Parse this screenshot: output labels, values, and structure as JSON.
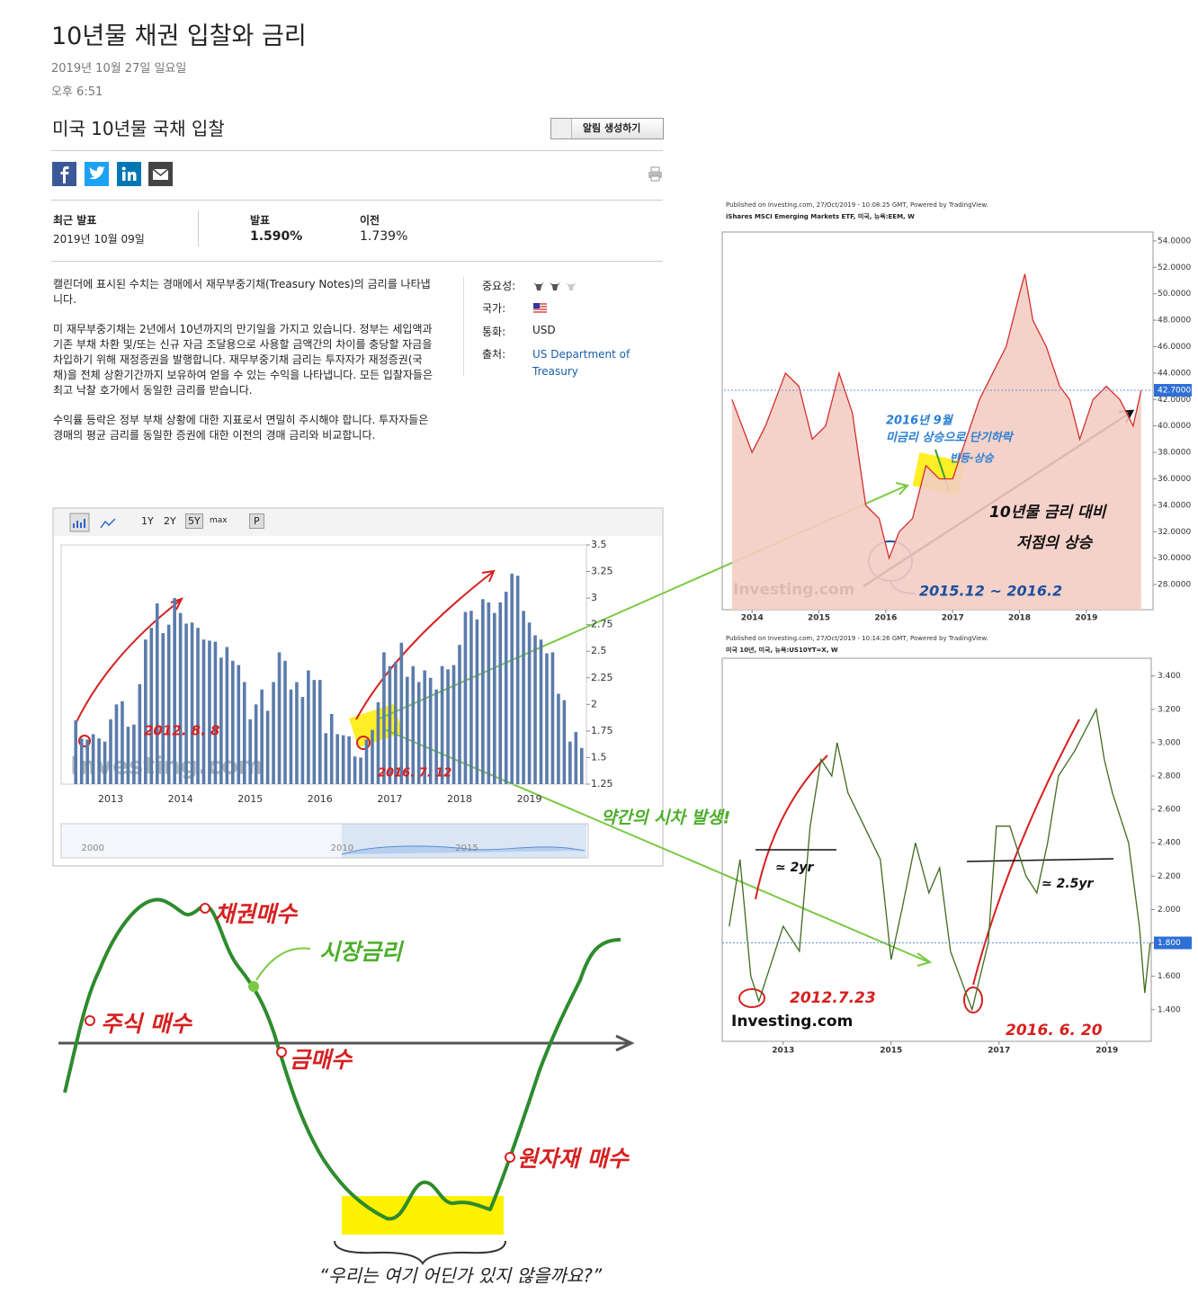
{
  "post": {
    "title": "10년물 채권 입찰와 금리",
    "date": "2019년 10월 27일 일요일",
    "time": "오후 6:51"
  },
  "widget": {
    "title": "미국 10년물 국채 입찰",
    "alert_button": "알림 생성하기",
    "latest_label": "최근 발표",
    "latest_date": "2019년 10월 09일",
    "actual_label": "발표",
    "actual": "1.590%",
    "previous_label": "이전",
    "previous": "1.739%",
    "description": [
      "캘린더에 표시된 수치는 경매에서 재무부중기채(Treasury Notes)의 금리를 나타냅니다.",
      "미 재무부중기채는 2년에서 10년까지의 만기일을 가지고 있습니다. 정부는 세입액과 기존 부채 차환 및/또는 신규 자금 조달용으로 사용할 금액간의 차이를 충당할 자금을 차입하기 위해 재정증권을 발행합니다. 재무부중기채 금리는 투자자가 재정증권(국채)을 전체 상환기간까지 보유하여 얻을 수 있는 수익을 나타냅니다. 모든 입찰자들은 최고 낙찰 호가에서 동일한 금리를 받습니다.",
      "수익률 등락은 정부 부채 상황에 대한 지표로서 면밀히 주시해야 합니다. 투자자들은 경매의 평균 금리를 동일한 증권에 대한 이전의 경매 금리와 비교합니다."
    ],
    "meta": [
      {
        "label": "중요성:"
      },
      {
        "label": "국가:"
      },
      {
        "label": "통화:",
        "value": "USD"
      },
      {
        "label": "출처:",
        "value": "US Department of Treasury"
      }
    ],
    "toolbar": [
      "1Y",
      "2Y",
      "5Y",
      "max",
      "P"
    ]
  },
  "chart_data": [
    {
      "type": "bar",
      "color": "#5b7bab",
      "watermark": "Investing.com",
      "categories": [
        null,
        null,
        null,
        null,
        null,
        null,
        "2013",
        null,
        null,
        null,
        null,
        null,
        null,
        null,
        null,
        null,
        null,
        null,
        "2014",
        null,
        null,
        null,
        null,
        null,
        null,
        null,
        null,
        null,
        null,
        null,
        "2015",
        null,
        null,
        null,
        null,
        null,
        null,
        null,
        null,
        null,
        null,
        null,
        "2016",
        null,
        null,
        null,
        null,
        null,
        null,
        null,
        null,
        null,
        null,
        null,
        "2017",
        null,
        null,
        null,
        null,
        null,
        null,
        null,
        null,
        null,
        null,
        null,
        "2018",
        null,
        null,
        null,
        null,
        null,
        null,
        null,
        null,
        null,
        null,
        null,
        "2019",
        null,
        null,
        null,
        null,
        null,
        null,
        null,
        null,
        null
      ],
      "values": [
        1.85,
        1.68,
        1.67,
        1.72,
        1.68,
        1.65,
        1.86,
        2.0,
        2.03,
        1.79,
        1.81,
        2.19,
        2.61,
        2.72,
        2.95,
        2.67,
        2.75,
        3.0,
        2.86,
        2.76,
        2.77,
        2.72,
        2.61,
        2.6,
        2.59,
        2.44,
        2.54,
        2.41,
        2.37,
        2.21,
        1.86,
        2.0,
        2.14,
        1.94,
        2.21,
        2.49,
        2.41,
        2.14,
        2.21,
        2.07,
        2.32,
        2.23,
        2.23,
        1.73,
        1.91,
        1.72,
        1.71,
        1.7,
        1.51,
        1.5,
        1.67,
        1.76,
        2.02,
        2.49,
        2.36,
        2.4,
        2.58,
        2.26,
        2.36,
        2.21,
        2.32,
        2.25,
        2.14,
        2.36,
        2.33,
        2.37,
        2.56,
        2.87,
        2.88,
        2.8,
        2.99,
        2.96,
        2.86,
        2.96,
        3.06,
        3.23,
        3.21,
        2.88,
        2.77,
        2.65,
        2.61,
        2.48,
        2.49,
        2.1,
        2.04,
        1.65,
        1.74,
        1.59
      ],
      "ylim": [
        1.25,
        3.5
      ],
      "yticks": [
        1.25,
        1.5,
        1.75,
        2,
        2.25,
        2.5,
        2.75,
        3,
        3.25,
        3.5
      ],
      "navigator": {
        "xlim": [
          1998.8,
          2019.8
        ],
        "xticks": [
          2000,
          2010,
          2015
        ]
      },
      "annotations": [
        "2012. 8. 8",
        "2016. 7. 12"
      ]
    },
    {
      "type": "area",
      "color": "#d32f2f",
      "fill": "#f4cdc3",
      "subtitle": "Published on Investing.com, 27/Oct/2019 - 10:08:25 GMT, Powered by TradingView.",
      "title": "iShares MSCI Emerging Markets ETF, 미국, 뉴욕:EEM, W",
      "watermark": "Investing.com",
      "x": [
        2013.7,
        2014.0,
        2014.2,
        2014.5,
        2014.7,
        2014.9,
        2015.1,
        2015.3,
        2015.5,
        2015.7,
        2015.9,
        2016.05,
        2016.2,
        2016.4,
        2016.6,
        2016.8,
        2017.0,
        2017.2,
        2017.4,
        2017.6,
        2017.8,
        2018.0,
        2018.08,
        2018.2,
        2018.4,
        2018.6,
        2018.75,
        2018.9,
        2019.1,
        2019.3,
        2019.5,
        2019.7,
        2019.82
      ],
      "values": [
        42,
        38,
        40,
        44,
        43,
        39,
        40,
        44,
        41,
        34,
        33,
        30,
        32,
        33,
        37,
        36,
        36,
        39,
        42,
        44,
        46,
        50,
        51.5,
        48,
        46,
        43,
        42,
        39,
        42,
        43,
        42,
        40,
        42.7
      ],
      "xlim": [
        2013.58,
        2019.97
      ],
      "xticks": [
        2014,
        2015,
        2016,
        2017,
        2018,
        2019
      ],
      "ylim": [
        26.1,
        54.4
      ],
      "yticks": [
        {
          "value": 28,
          "label": "28.0000"
        },
        {
          "value": 30,
          "label": "30.0000"
        },
        {
          "value": 32,
          "label": "32.0000"
        },
        {
          "value": 34,
          "label": "34.0000"
        },
        {
          "value": 36,
          "label": "36.0000"
        },
        {
          "value": 38,
          "label": "38.0000"
        },
        {
          "value": 40,
          "label": "40.0000"
        },
        {
          "value": 42,
          "label": "42.0000"
        },
        {
          "value": 44,
          "label": "44.0000"
        },
        {
          "value": 46,
          "label": "46.0000"
        },
        {
          "value": 48,
          "label": "48.0000"
        },
        {
          "value": 50,
          "label": "50.0000"
        },
        {
          "value": 52,
          "label": "52.0000"
        },
        {
          "value": 54,
          "label": "54.0000"
        }
      ],
      "current_label": {
        "value": 42.7,
        "label": "42.7000"
      },
      "annotations": [
        "2016년 9월",
        "미금리 상승으로 단기하락",
        "반등·상승",
        "10년물 금리 대비",
        "저점의 상승",
        "2015.12 ~ 2016.2"
      ]
    },
    {
      "type": "line",
      "color": "#3f6b1f",
      "subtitle": "Published on Investing.com, 27/Oct/2019 - 10:14:26 GMT, Powered by TradingView.",
      "title": "미국 10년, 미국, 뉴욕:US10YT=X, W",
      "watermark": "Investing.com",
      "x": [
        2012.0,
        2012.2,
        2012.4,
        2012.55,
        2012.8,
        2013.0,
        2013.3,
        2013.5,
        2013.7,
        2013.9,
        2014.0,
        2014.2,
        2014.5,
        2014.8,
        2015.0,
        2015.2,
        2015.45,
        2015.7,
        2015.9,
        2016.1,
        2016.5,
        2016.8,
        2016.95,
        2017.2,
        2017.5,
        2017.7,
        2017.9,
        2018.1,
        2018.4,
        2018.8,
        2018.95,
        2019.1,
        2019.4,
        2019.6,
        2019.7,
        2019.8
      ],
      "values": [
        1.9,
        2.3,
        1.6,
        1.45,
        1.7,
        1.9,
        1.75,
        2.5,
        2.9,
        2.8,
        3.0,
        2.7,
        2.5,
        2.3,
        1.7,
        2.0,
        2.4,
        2.1,
        2.25,
        1.75,
        1.4,
        1.8,
        2.5,
        2.5,
        2.2,
        2.1,
        2.4,
        2.8,
        2.95,
        3.2,
        2.9,
        2.7,
        2.4,
        1.9,
        1.5,
        1.8
      ],
      "xlim": [
        2011.87,
        2019.82
      ],
      "xticks": [
        2013,
        2015,
        2017,
        2019
      ],
      "ylim": [
        1.21,
        3.49
      ],
      "yticks": [
        {
          "value": 1.4,
          "label": "1.400"
        },
        {
          "value": 1.6,
          "label": "1.600"
        },
        {
          "value": 1.8,
          "label": "1.800"
        },
        {
          "value": 2.0,
          "label": "2.000"
        },
        {
          "value": 2.2,
          "label": "2.200"
        },
        {
          "value": 2.4,
          "label": "2.400"
        },
        {
          "value": 2.6,
          "label": "2.600"
        },
        {
          "value": 2.8,
          "label": "2.800"
        },
        {
          "value": 3.0,
          "label": "3.000"
        },
        {
          "value": 3.2,
          "label": "3.200"
        },
        {
          "value": 3.4,
          "label": "3.400"
        }
      ],
      "current_label": {
        "value": 1.8,
        "label": "1.800"
      },
      "annotations": [
        "≃ 2yr",
        "≃ 2.5yr",
        "2012.7.23",
        "2016. 6. 20"
      ]
    }
  ],
  "lag_note": "약간의 시차 발생!",
  "cycle_diagram": {
    "labels": [
      "채권매수",
      "시장금리",
      "주식 매수",
      "금매수",
      "원자재 매수"
    ],
    "caption": "“우리는 여기 어딘가 있지 않을까요?”"
  }
}
